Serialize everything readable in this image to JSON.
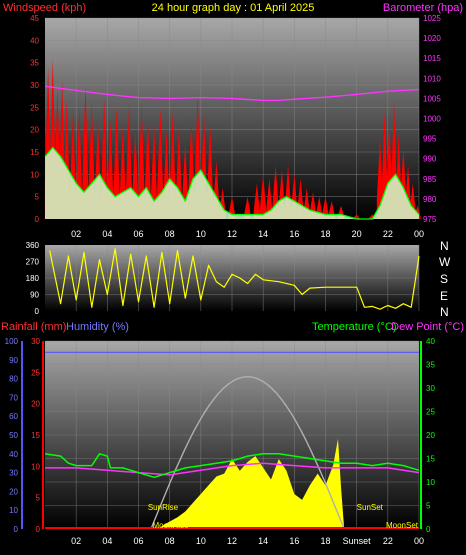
{
  "header": {
    "windspeed_label": "Windspeed (kph)",
    "title": "24 hour graph day : 01 April 2025",
    "barometer_label": "Barometer (hpa)"
  },
  "direction_letters": [
    "N",
    "W",
    "S",
    "E",
    "N"
  ],
  "bottom_header": {
    "rainfall_label": "Rainfall (mm)",
    "humidity_label": "Humidity (%)",
    "temperature_label": "Temperature (°C)",
    "dewpoint_label": "Dew Point (°C)"
  },
  "sun_labels": {
    "sunrise_left": "SunRise",
    "sunset_right": "SunSet",
    "sunset_bottom": "SunSet",
    "moonset": "MoonSet",
    "moonrise": "MoonRise"
  },
  "colors": {
    "wind_gust": "#ff0000",
    "wind_avg": "#00ff00",
    "wind_fill": "#ccffcc",
    "barometer": "#ff33ff",
    "direction": "#ffff00",
    "temperature": "#00ff00",
    "dewpoint": "#ff33ff",
    "humidity": "#5555ff",
    "solar": "#ffff00",
    "sun_arc": "#b0b0b0",
    "rain": "#ff0000"
  },
  "chart_data": [
    {
      "type": "line",
      "name": "wind-barometer",
      "x_ticks": [
        "02",
        "04",
        "06",
        "08",
        "10",
        "12",
        "14",
        "16",
        "18",
        "20",
        "22",
        "00"
      ],
      "xlim": [
        0,
        24
      ],
      "y_left_ticks": [
        "0",
        "5",
        "10",
        "15",
        "20",
        "25",
        "30",
        "35",
        "40",
        "45"
      ],
      "ylim_left": [
        0,
        45
      ],
      "y_right_ticks": [
        "975",
        "980",
        "985",
        "990",
        "995",
        "1000",
        "1005",
        "1010",
        "1015",
        "1020",
        "1025"
      ],
      "ylim_right": [
        975,
        1025
      ],
      "gust_peaks": [
        [
          0.2,
          34
        ],
        [
          0.5,
          36
        ],
        [
          0.8,
          29
        ],
        [
          1.1,
          31
        ],
        [
          1.4,
          27
        ],
        [
          1.8,
          24
        ],
        [
          2.2,
          25
        ],
        [
          2.6,
          30
        ],
        [
          3.0,
          26
        ],
        [
          3.4,
          22
        ],
        [
          3.8,
          27
        ],
        [
          4.2,
          22
        ],
        [
          4.6,
          25
        ],
        [
          5.0,
          21
        ],
        [
          5.4,
          26
        ],
        [
          5.8,
          20
        ],
        [
          6.2,
          26
        ],
        [
          6.6,
          23
        ],
        [
          7.0,
          21
        ],
        [
          7.4,
          25
        ],
        [
          7.8,
          20
        ],
        [
          8.2,
          24
        ],
        [
          8.6,
          21
        ],
        [
          9.0,
          17
        ],
        [
          9.4,
          23
        ],
        [
          9.8,
          28
        ],
        [
          10.2,
          24
        ],
        [
          10.6,
          21
        ],
        [
          11.0,
          13
        ],
        [
          11.4,
          7
        ],
        [
          12.0,
          5
        ],
        [
          13.0,
          5
        ],
        [
          13.6,
          8
        ],
        [
          14.0,
          10
        ],
        [
          14.4,
          9
        ],
        [
          14.8,
          12
        ],
        [
          15.2,
          11
        ],
        [
          15.6,
          12
        ],
        [
          16.0,
          10
        ],
        [
          16.4,
          9
        ],
        [
          16.8,
          7
        ],
        [
          17.2,
          6
        ],
        [
          17.6,
          5
        ],
        [
          18.0,
          5
        ],
        [
          18.4,
          4
        ],
        [
          19.0,
          3
        ],
        [
          20.0,
          1
        ],
        [
          21.0,
          1
        ],
        [
          21.5,
          18
        ],
        [
          21.8,
          24
        ],
        [
          22.1,
          22
        ],
        [
          22.4,
          26
        ],
        [
          22.7,
          19
        ],
        [
          23.0,
          16
        ],
        [
          23.3,
          12
        ],
        [
          23.6,
          8
        ],
        [
          23.9,
          3
        ]
      ],
      "avg": [
        [
          0,
          14
        ],
        [
          0.5,
          16
        ],
        [
          1,
          14
        ],
        [
          1.5,
          11
        ],
        [
          2,
          8
        ],
        [
          2.5,
          6
        ],
        [
          3,
          8
        ],
        [
          3.5,
          10
        ],
        [
          4,
          7
        ],
        [
          4.5,
          5
        ],
        [
          5,
          6
        ],
        [
          5.5,
          7
        ],
        [
          6,
          5
        ],
        [
          6.5,
          7
        ],
        [
          7,
          4
        ],
        [
          7.5,
          6
        ],
        [
          8,
          9
        ],
        [
          8.5,
          7
        ],
        [
          9,
          4
        ],
        [
          9.5,
          9
        ],
        [
          10,
          11
        ],
        [
          10.5,
          8
        ],
        [
          11,
          5
        ],
        [
          11.5,
          2
        ],
        [
          12,
          1
        ],
        [
          13,
          1
        ],
        [
          14,
          1
        ],
        [
          14.5,
          2
        ],
        [
          15,
          4
        ],
        [
          15.5,
          5
        ],
        [
          16,
          4
        ],
        [
          16.5,
          3
        ],
        [
          17,
          2
        ],
        [
          18,
          1
        ],
        [
          19,
          1
        ],
        [
          20,
          0
        ],
        [
          21,
          0
        ],
        [
          21.5,
          3
        ],
        [
          22,
          8
        ],
        [
          22.5,
          10
        ],
        [
          23,
          7
        ],
        [
          23.5,
          3
        ],
        [
          24,
          1
        ]
      ],
      "barometer": [
        [
          0,
          1008
        ],
        [
          1,
          1007.5
        ],
        [
          2,
          1007
        ],
        [
          4,
          1006
        ],
        [
          6,
          1005.2
        ],
        [
          8,
          1005
        ],
        [
          10,
          1005.2
        ],
        [
          12,
          1005
        ],
        [
          14,
          1004.5
        ],
        [
          15,
          1004.5
        ],
        [
          16,
          1004.8
        ],
        [
          18,
          1005.3
        ],
        [
          20,
          1006
        ],
        [
          22,
          1006.8
        ],
        [
          24,
          1007.2
        ]
      ]
    },
    {
      "type": "line",
      "name": "wind-direction",
      "xlim": [
        0,
        24
      ],
      "y_ticks": [
        "0",
        "90",
        "180",
        "270",
        "360"
      ],
      "ylim": [
        0,
        360
      ],
      "direction": [
        [
          0.3,
          330
        ],
        [
          1.0,
          40
        ],
        [
          1.5,
          300
        ],
        [
          2.0,
          60
        ],
        [
          2.5,
          320
        ],
        [
          3.0,
          20
        ],
        [
          3.5,
          280
        ],
        [
          4.0,
          90
        ],
        [
          4.5,
          340
        ],
        [
          5.0,
          30
        ],
        [
          5.5,
          310
        ],
        [
          6.0,
          50
        ],
        [
          6.5,
          300
        ],
        [
          7.0,
          20
        ],
        [
          7.5,
          320
        ],
        [
          8.0,
          40
        ],
        [
          8.5,
          330
        ],
        [
          9.0,
          70
        ],
        [
          9.5,
          300
        ],
        [
          10.0,
          60
        ],
        [
          10.5,
          250
        ],
        [
          11.0,
          160
        ],
        [
          11.5,
          130
        ],
        [
          12.0,
          200
        ],
        [
          12.5,
          180
        ],
        [
          13.0,
          150
        ],
        [
          13.5,
          200
        ],
        [
          14.0,
          170
        ],
        [
          15.0,
          160
        ],
        [
          16.0,
          140
        ],
        [
          16.5,
          90
        ],
        [
          17.0,
          125
        ],
        [
          18.0,
          130
        ],
        [
          19.0,
          130
        ],
        [
          20.0,
          130
        ],
        [
          20.5,
          20
        ],
        [
          21.0,
          25
        ],
        [
          21.5,
          10
        ],
        [
          22.0,
          30
        ],
        [
          22.5,
          15
        ],
        [
          23.0,
          40
        ],
        [
          23.5,
          20
        ],
        [
          24.0,
          300
        ]
      ]
    },
    {
      "type": "line",
      "name": "temp-humidity-rain",
      "x_ticks": [
        "02",
        "04",
        "06",
        "08",
        "10",
        "12",
        "14",
        "16",
        "18",
        "Sunset",
        "22",
        "00"
      ],
      "xlim": [
        0,
        24
      ],
      "y_left_ticks": [
        "0",
        "10",
        "20",
        "30",
        "40",
        "50",
        "60",
        "70",
        "80",
        "90",
        "100"
      ],
      "ylim_left": [
        0,
        100
      ],
      "y_rain_ticks": [
        "0",
        "5",
        "10",
        "15",
        "20",
        "25",
        "30"
      ],
      "ylim_rain": [
        0,
        30
      ],
      "y_right_ticks": [
        "0",
        "5",
        "10",
        "15",
        "20",
        "25",
        "30",
        "35",
        "40"
      ],
      "ylim_right": [
        0,
        40
      ],
      "humidity": [
        [
          0,
          94
        ],
        [
          24,
          94
        ]
      ],
      "temperature": [
        [
          0,
          16
        ],
        [
          1,
          15.5
        ],
        [
          1.5,
          14
        ],
        [
          2,
          13.5
        ],
        [
          3,
          13.5
        ],
        [
          3.5,
          16
        ],
        [
          4,
          15.5
        ],
        [
          4.2,
          13
        ],
        [
          5,
          13
        ],
        [
          6,
          12
        ],
        [
          7,
          11
        ],
        [
          8,
          12
        ],
        [
          9,
          13
        ],
        [
          10,
          13.5
        ],
        [
          11,
          14
        ],
        [
          12,
          14.5
        ],
        [
          13,
          15.5
        ],
        [
          14,
          16
        ],
        [
          15,
          16
        ],
        [
          16,
          15.5
        ],
        [
          17,
          15
        ],
        [
          18,
          14.5
        ],
        [
          19,
          14
        ],
        [
          20,
          14
        ],
        [
          21,
          13.5
        ],
        [
          22,
          14
        ],
        [
          23,
          13.5
        ],
        [
          24,
          12.5
        ]
      ],
      "dewpoint": [
        [
          0,
          13
        ],
        [
          2,
          13
        ],
        [
          4,
          12.5
        ],
        [
          6,
          12
        ],
        [
          8,
          11.5
        ],
        [
          10,
          12.5
        ],
        [
          12,
          13.5
        ],
        [
          14,
          14
        ],
        [
          16,
          13.5
        ],
        [
          18,
          13
        ],
        [
          20,
          13
        ],
        [
          22,
          13
        ],
        [
          24,
          12
        ]
      ],
      "solar": [
        [
          7.2,
          0
        ],
        [
          7.8,
          2
        ],
        [
          8.5,
          4
        ],
        [
          9.0,
          6
        ],
        [
          9.5,
          9
        ],
        [
          10.0,
          12
        ],
        [
          10.5,
          15
        ],
        [
          11.0,
          18
        ],
        [
          11.5,
          19
        ],
        [
          12.0,
          24
        ],
        [
          12.5,
          20
        ],
        [
          13.0,
          23
        ],
        [
          13.5,
          25
        ],
        [
          14.0,
          21
        ],
        [
          14.5,
          17
        ],
        [
          15.0,
          24
        ],
        [
          15.5,
          20
        ],
        [
          16.0,
          12
        ],
        [
          16.5,
          10
        ],
        [
          17.0,
          15
        ],
        [
          17.5,
          19
        ],
        [
          18.0,
          15
        ],
        [
          18.5,
          22
        ],
        [
          18.8,
          31
        ],
        [
          19.0,
          14
        ],
        [
          19.2,
          0
        ]
      ],
      "sun_arc_peak": 81,
      "rain": [
        [
          0,
          0
        ],
        [
          24,
          0
        ]
      ]
    }
  ]
}
